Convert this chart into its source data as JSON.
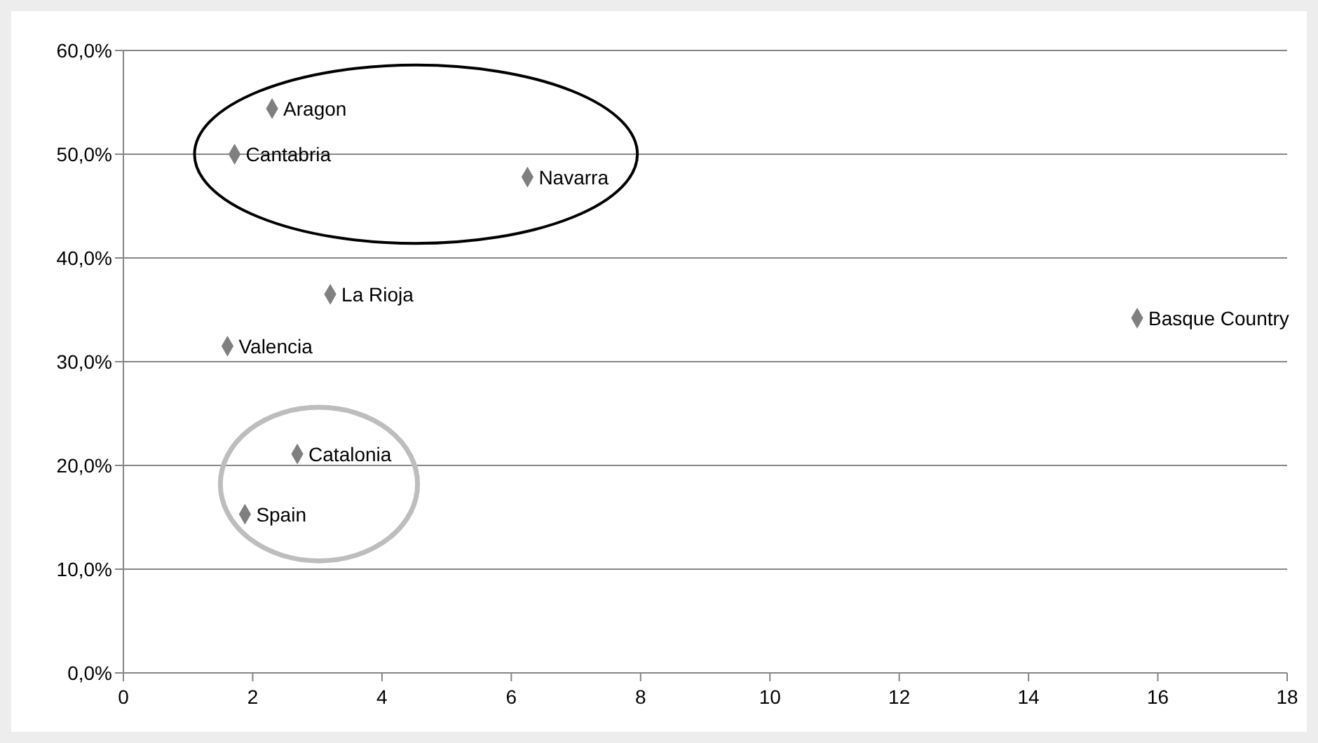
{
  "chart_data": {
    "type": "scatter",
    "xlim": [
      0,
      18
    ],
    "xticks": [
      0,
      2,
      4,
      6,
      8,
      10,
      12,
      14,
      16,
      18
    ],
    "ylim": [
      0,
      60
    ],
    "yticks": [
      {
        "value": 0,
        "label": "0,0%"
      },
      {
        "value": 10,
        "label": "10,0%"
      },
      {
        "value": 20,
        "label": "20,0%"
      },
      {
        "value": 30,
        "label": "30,0%"
      },
      {
        "value": 40,
        "label": "40,0%"
      },
      {
        "value": 50,
        "label": "50,0%"
      },
      {
        "value": 60,
        "label": "60,0%"
      }
    ],
    "grid": "y",
    "marker": "diamond",
    "series": [
      {
        "color": "#7f7f7f",
        "x": [
          2.3,
          1.72,
          6.25,
          3.2,
          1.61,
          15.68,
          2.69,
          1.88
        ],
        "values": [
          54.4,
          50.0,
          47.8,
          36.5,
          31.5,
          34.2,
          21.1,
          15.3
        ]
      }
    ],
    "annotations": [
      {
        "text": "Aragon",
        "x": 2.3,
        "y": 54.4
      },
      {
        "text": "Cantabria",
        "x": 1.72,
        "y": 50.0
      },
      {
        "text": "Navarra",
        "x": 6.25,
        "y": 47.8
      },
      {
        "text": "La Rioja",
        "x": 3.2,
        "y": 36.5
      },
      {
        "text": "Valencia",
        "x": 1.61,
        "y": 31.5
      },
      {
        "text": "Basque Country",
        "x": 15.68,
        "y": 34.2
      },
      {
        "text": "Catalonia",
        "x": 2.69,
        "y": 21.1
      },
      {
        "text": "Spain",
        "x": 1.88,
        "y": 15.3
      }
    ]
  }
}
